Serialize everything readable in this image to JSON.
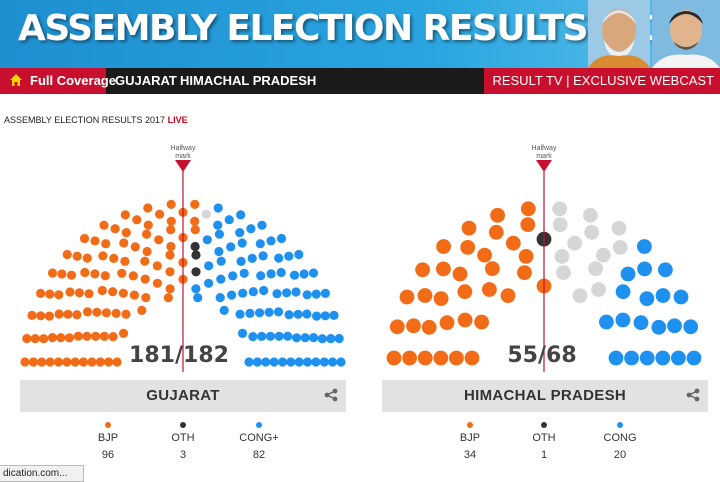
{
  "banner": {
    "title": "ASSEMBLY ELECTION RESULTS 2017"
  },
  "nav": {
    "full_coverage": "Full Coverage",
    "items": [
      "GUJARAT",
      "HIMACHAL PRADESH"
    ],
    "right": "RESULT TV | EXCLUSIVE WEBCAST"
  },
  "heading": {
    "text": "ASSEMBLY ELECTION RESULTS 2017",
    "live": "LIVE"
  },
  "colors": {
    "bjp": "#f26b16",
    "oth": "#333333",
    "cong": "#1e90f0",
    "pending": "#d6d6d6",
    "marker": "#c8102e"
  },
  "charts": [
    {
      "state": "GUJARAT",
      "score": "181/182",
      "halfway": [
        "Halfway",
        "mark"
      ],
      "parties": [
        {
          "name": "BJP",
          "seats": "96",
          "color": "#f26b16"
        },
        {
          "name": "OTH",
          "seats": "3",
          "color": "#333333"
        },
        {
          "name": "CONG+",
          "seats": "82",
          "color": "#1e90f0"
        }
      ]
    },
    {
      "state": "HIMACHAL PRADESH",
      "score": "55/68",
      "halfway": [
        "Halfway",
        "mark"
      ],
      "parties": [
        {
          "name": "BJP",
          "seats": "34",
          "color": "#f26b16"
        },
        {
          "name": "OTH",
          "seats": "1",
          "color": "#333333"
        },
        {
          "name": "CONG",
          "seats": "20",
          "color": "#1e90f0"
        }
      ]
    }
  ],
  "status_bar": {
    "url": "dication.com..."
  }
}
